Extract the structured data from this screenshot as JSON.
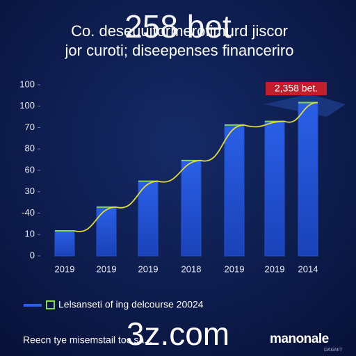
{
  "chart_data": {
    "type": "bar",
    "title": "Co. deseuuitormerofimurd jiscor",
    "subtitle": "jor curoti; diseepenses financeriro",
    "categories": [
      "2019",
      "2019",
      "2019",
      "2018",
      "2019",
      "2019",
      "2014"
    ],
    "series": [
      {
        "name": "Lelsanseti of ing delcourse 20024",
        "color": "#2152d4",
        "values": [
          11.7,
          22.8,
          34.9,
          44.6,
          61.2,
          62.9,
          71.7
        ]
      }
    ],
    "bar_top_color": "#86d84c",
    "line_color": "#e3dc34",
    "ylim": [
      0,
      80
    ],
    "yticks": [
      0,
      10,
      {
        "value": 20,
        "label": "-40"
      },
      30,
      {
        "value": 40,
        "label": "60"
      },
      {
        "value": 50,
        "label": "80"
      },
      {
        "value": 60,
        "label": "70"
      },
      {
        "value": 70,
        "label": "100"
      },
      {
        "value": 80,
        "label": "100"
      }
    ],
    "annotation": "2,358 bet.",
    "footer": "Reecn tye misemstail toc sa...",
    "logo": "manonale",
    "logo_sub": "DAGNIT",
    "watermarks": [
      "258 bet",
      "3z.com"
    ]
  }
}
